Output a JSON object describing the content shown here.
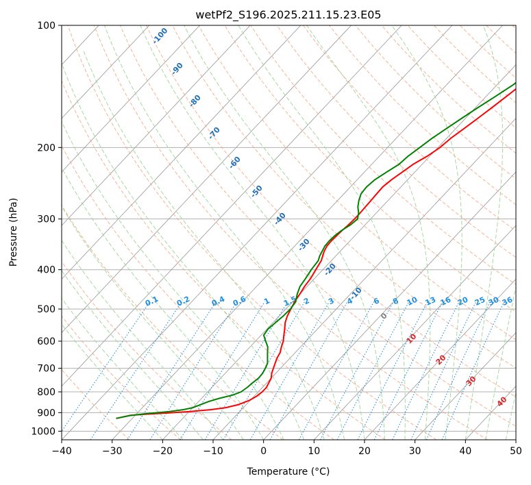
{
  "chart_data": {
    "type": "line",
    "title": "wetPf2_S196.2025.211.15.23.E05",
    "xlabel": "Temperature (°C)",
    "ylabel": "Pressure (hPa)",
    "xlim": [
      -40,
      50
    ],
    "ylim": [
      1050,
      100
    ],
    "y_scale": "log",
    "x_ticks": [
      -40,
      -30,
      -20,
      -10,
      0,
      10,
      20,
      30,
      40,
      50
    ],
    "x_tick_labels": [
      "−40",
      "−30",
      "−20",
      "−10",
      "0",
      "10",
      "20",
      "30",
      "40",
      "50"
    ],
    "y_ticks": [
      1000,
      900,
      800,
      700,
      600,
      500,
      400,
      300,
      200,
      100
    ],
    "y_tick_labels": [
      "1000",
      "900",
      "800",
      "700",
      "600",
      "500",
      "400",
      "300",
      "200",
      "100"
    ],
    "grid": true,
    "series": [
      {
        "role": "temperature",
        "color": "#ff0000",
        "points": [
          [
            -10.5,
            100
          ],
          [
            -11.5,
            110
          ],
          [
            -12.8,
            120
          ],
          [
            -14.2,
            130
          ],
          [
            -15.2,
            140
          ],
          [
            -16.0,
            150
          ],
          [
            -16.8,
            160
          ],
          [
            -17.6,
            170
          ],
          [
            -18.4,
            180
          ],
          [
            -19.2,
            190
          ],
          [
            -19.6,
            200
          ],
          [
            -20.5,
            210
          ],
          [
            -21.8,
            220
          ],
          [
            -22.5,
            230
          ],
          [
            -23.2,
            240
          ],
          [
            -23.6,
            250
          ],
          [
            -23.5,
            260
          ],
          [
            -23.4,
            270
          ],
          [
            -23.3,
            280
          ],
          [
            -23.2,
            290
          ],
          [
            -23.2,
            300
          ],
          [
            -23.3,
            310
          ],
          [
            -23.5,
            320
          ],
          [
            -23.6,
            330
          ],
          [
            -23.7,
            340
          ],
          [
            -23.6,
            350
          ],
          [
            -23.2,
            360
          ],
          [
            -22.6,
            370
          ],
          [
            -22.0,
            380
          ],
          [
            -21.4,
            400
          ],
          [
            -20.8,
            420
          ],
          [
            -20.5,
            440
          ],
          [
            -20.0,
            460
          ],
          [
            -19.6,
            480
          ],
          [
            -19.0,
            500
          ],
          [
            -18.4,
            520
          ],
          [
            -17.6,
            540
          ],
          [
            -16.5,
            560
          ],
          [
            -15.5,
            580
          ],
          [
            -14.5,
            600
          ],
          [
            -13.8,
            620
          ],
          [
            -13.0,
            640
          ],
          [
            -12.6,
            660
          ],
          [
            -12.0,
            680
          ],
          [
            -11.4,
            700
          ],
          [
            -10.8,
            720
          ],
          [
            -10.0,
            740
          ],
          [
            -9.6,
            760
          ],
          [
            -9.2,
            780
          ],
          [
            -9.2,
            800
          ],
          [
            -9.5,
            820
          ],
          [
            -10.2,
            840
          ],
          [
            -11.5,
            860
          ],
          [
            -13.5,
            875
          ],
          [
            -16.0,
            885
          ],
          [
            -20.0,
            895
          ],
          [
            -24.0,
            902
          ],
          [
            -28.0,
            908
          ],
          [
            -31.0,
            914
          ],
          [
            -33.2,
            930
          ]
        ]
      },
      {
        "role": "dewpoint",
        "color": "#008000",
        "points": [
          [
            -12.5,
            100
          ],
          [
            -13.8,
            110
          ],
          [
            -15.0,
            120
          ],
          [
            -15.8,
            130
          ],
          [
            -16.8,
            140
          ],
          [
            -18.2,
            150
          ],
          [
            -19.6,
            160
          ],
          [
            -20.8,
            170
          ],
          [
            -21.9,
            180
          ],
          [
            -22.9,
            190
          ],
          [
            -23.6,
            200
          ],
          [
            -24.3,
            210
          ],
          [
            -24.6,
            220
          ],
          [
            -25.6,
            230
          ],
          [
            -26.5,
            240
          ],
          [
            -26.8,
            250
          ],
          [
            -26.6,
            260
          ],
          [
            -25.8,
            270
          ],
          [
            -24.8,
            280
          ],
          [
            -23.5,
            290
          ],
          [
            -22.6,
            300
          ],
          [
            -22.9,
            310
          ],
          [
            -23.6,
            320
          ],
          [
            -24.0,
            330
          ],
          [
            -24.1,
            340
          ],
          [
            -24.0,
            350
          ],
          [
            -23.6,
            360
          ],
          [
            -23.2,
            370
          ],
          [
            -22.6,
            380
          ],
          [
            -22.3,
            400
          ],
          [
            -21.8,
            420
          ],
          [
            -21.4,
            440
          ],
          [
            -20.5,
            460
          ],
          [
            -19.4,
            480
          ],
          [
            -19.1,
            500
          ],
          [
            -19.2,
            520
          ],
          [
            -19.5,
            540
          ],
          [
            -19.8,
            560
          ],
          [
            -19.5,
            580
          ],
          [
            -18.0,
            600
          ],
          [
            -16.5,
            620
          ],
          [
            -15.5,
            640
          ],
          [
            -14.5,
            660
          ],
          [
            -13.5,
            680
          ],
          [
            -13.0,
            700
          ],
          [
            -12.6,
            720
          ],
          [
            -12.5,
            740
          ],
          [
            -12.8,
            760
          ],
          [
            -13.0,
            780
          ],
          [
            -13.4,
            800
          ],
          [
            -14.5,
            815
          ],
          [
            -16.5,
            830
          ],
          [
            -18.0,
            845
          ],
          [
            -19.0,
            860
          ],
          [
            -20.0,
            875
          ],
          [
            -21.5,
            885
          ],
          [
            -24.0,
            895
          ],
          [
            -28.0,
            905
          ],
          [
            -31.0,
            915
          ],
          [
            -33.2,
            930
          ]
        ]
      }
    ],
    "dry_adiabat_labels": [
      "-100",
      "-90",
      "-80",
      "-70",
      "-60",
      "-50",
      "-40",
      "-30",
      "-20",
      "-10"
    ],
    "mixing_ratio_labels": [
      "0.1",
      "0.2",
      "0.4",
      "0.6",
      "1",
      "1.5",
      "2",
      "3",
      "4",
      "6",
      "8",
      "10",
      "13",
      "16",
      "20",
      "25",
      "30",
      "36"
    ],
    "moist_adiabat_labels": [
      "0",
      "10",
      "20",
      "30",
      "40"
    ],
    "colors": {
      "dry_adiabat": "#f4a582",
      "moist_adiabat": "#a6d8a0",
      "isotherm": "#a0a0a0",
      "mixing_ratio": "#1f8fe0",
      "dry_label": "#1f6fb8",
      "moist_label_0": "#808080",
      "moist_label": "#d62728",
      "extra_curve": "#d9bf9b"
    }
  }
}
